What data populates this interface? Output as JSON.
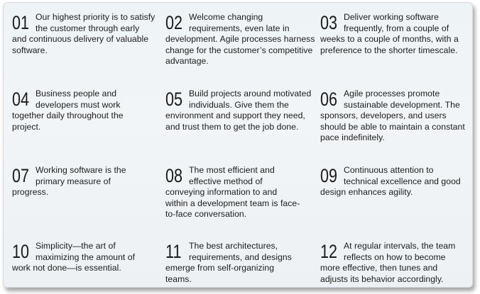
{
  "principles": [
    {
      "num": "01",
      "text": "Our highest priority is to satisfy the customer through early and continuous delivery of valuable software."
    },
    {
      "num": "02",
      "text": "Welcome changing requirements, even late in development. Agile processes harness change for the customer’s competitive advantage."
    },
    {
      "num": "03",
      "text": "Deliver working software frequently, from a couple of weeks to a couple of months, with a preference to the shorter timescale."
    },
    {
      "num": "04",
      "text": "Business people and developers must work together daily throughout the project."
    },
    {
      "num": "05",
      "text": "Build projects around motivated individuals. Give them the environment and support they need, and trust them to get the job done."
    },
    {
      "num": "06",
      "text": "Agile processes promote sustainable development. The sponsors, developers, and users should be able to maintain a constant pace indefinitely."
    },
    {
      "num": "07",
      "text": "Working software is the primary measure of progress."
    },
    {
      "num": "08",
      "text": "The most efficient and effective method of conveying information to and within a development team is face-to-face conversation."
    },
    {
      "num": "09",
      "text": "Continuous attention to technical excellence and good design enhances agility."
    },
    {
      "num": "10",
      "text": "Simplicity—the art of maximizing the amount of work not done—is essential."
    },
    {
      "num": "11",
      "text": "The best architectures, requirements, and designs emerge from self-organizing teams."
    },
    {
      "num": "12",
      "text": "At regular intervals, the team reflects on how to become more effective, then tunes and adjusts its behavior accordingly."
    }
  ]
}
